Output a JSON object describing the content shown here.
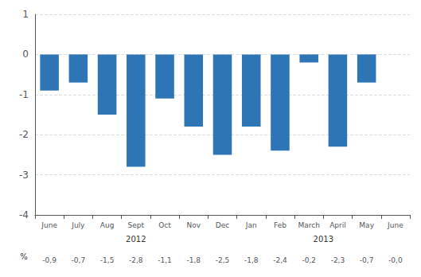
{
  "chart_data": {
    "type": "bar",
    "categories": [
      "June",
      "July",
      "Aug",
      "Sept",
      "Oct",
      "Nov",
      "Dec",
      "Jan",
      "Feb",
      "March",
      "April",
      "May",
      "June"
    ],
    "values": [
      -0.9,
      -0.7,
      -1.5,
      -2.8,
      -1.1,
      -1.8,
      -2.5,
      -1.8,
      -2.4,
      -0.2,
      -2.3,
      -0.7,
      -0.0
    ],
    "value_labels": [
      "-0,9",
      "-0,7",
      "-1,5",
      "-2,8",
      "-1,1",
      "-1,8",
      "-2,5",
      "-1,8",
      "-2,4",
      "-0,2",
      "-2,3",
      "-0,7",
      "-0,0"
    ],
    "data_labels": true,
    "color": "#2E75B6",
    "ylim": [
      -4,
      1
    ],
    "yticks": [
      -4,
      -3,
      -2,
      -1,
      0,
      1
    ],
    "grid": true,
    "annotations": [
      {
        "text": "%"
      },
      {
        "text": "2012",
        "from": 0,
        "to": 6
      },
      {
        "text": "2013",
        "from": 7,
        "to": 12
      }
    ]
  }
}
